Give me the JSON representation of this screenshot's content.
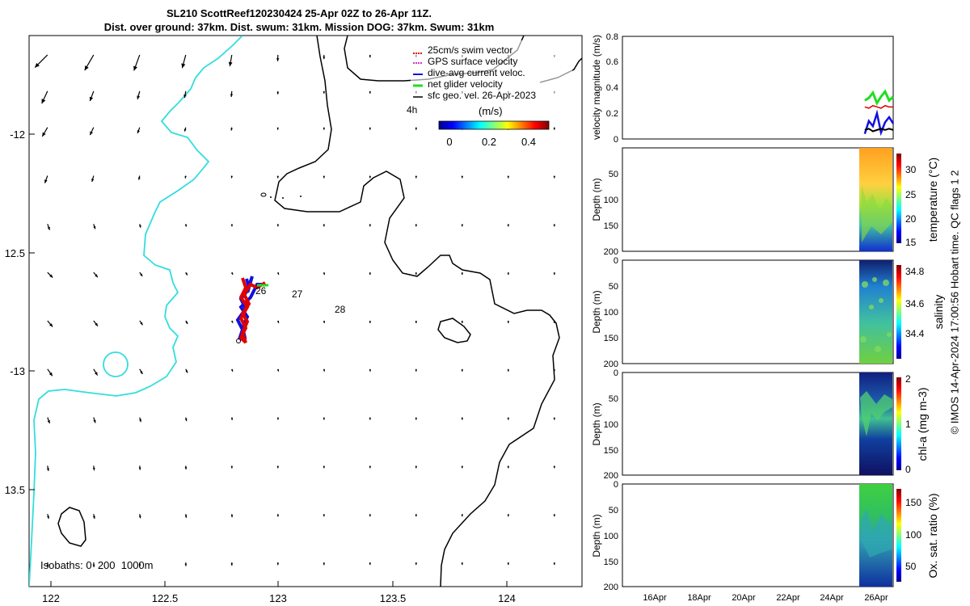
{
  "title": {
    "line1": "SL210 ScottReef120230424 25-Apr 02Z to 26-Apr 11Z.",
    "line2": "Dist. over ground: 37km. Dist. swum: 31km. Mission DOG: 37km. Swum: 31km"
  },
  "side_note": "© IMOS 14-Apr-2024 17:00:56 Hobart time. QC flags 1  2",
  "colors": {
    "coastline": "#33dddd",
    "isobath": "#000000",
    "swim_vector": "#e00000",
    "gps_velocity": "#cc33cc",
    "current_vel": "#1010e0",
    "net_velocity": "#22dd22",
    "geo_vel": "#000000"
  },
  "chart_data": [
    {
      "type": "scatter",
      "name": "map",
      "xlim": [
        121.92,
        124.32
      ],
      "ylim": [
        -13.9,
        -11.62
      ],
      "xticks": [
        122,
        122.5,
        123,
        123.5,
        124
      ],
      "xtick_labels": [
        "122",
        "122.5",
        "123",
        "123.5",
        "124"
      ],
      "yticks": [
        -12,
        -12.5,
        -13,
        -13.5
      ],
      "ytick_labels": [
        "-12",
        "12.5",
        "-13",
        "13.5"
      ],
      "legend": {
        "placement": "top-right",
        "entries": [
          "25cm/s swim vector",
          "GPS surface velocity",
          "dive-avg current veloc.",
          "net glider velocity",
          "sfc geo. vel. 26-Apr-2023"
        ]
      },
      "time_marker": "4h",
      "colorbar": {
        "label": "(m/s)",
        "ticks": [
          "0",
          "0.2",
          "0.4"
        ],
        "range": [
          0,
          0.5
        ]
      },
      "isobath_label": "Isobaths: 0  200  1000m",
      "day_labels": [
        {
          "text": "26",
          "lon": 122.93,
          "lat": -12.65
        },
        {
          "text": "27",
          "lon": 123.09,
          "lat": -12.67
        },
        {
          "text": "28",
          "lon": 123.27,
          "lat": -12.73
        }
      ],
      "geo_velocity_field": {
        "lon": [
          122.0,
          122.2,
          122.4,
          122.6,
          122.8,
          123.0,
          123.2,
          123.4,
          123.6,
          123.8,
          124.0,
          124.2
        ],
        "lat": [
          -11.7,
          -11.85,
          -12.0,
          -12.2,
          -12.4,
          -12.6,
          -12.8,
          -13.0,
          -13.2,
          -13.4,
          -13.6,
          -13.8
        ],
        "speed": [
          [
            0.34,
            0.34,
            0.32,
            0.26,
            0.22,
            0.12,
            0.08,
            0.05,
            0.03,
            0.02,
            0.02,
            0.02
          ],
          [
            0.26,
            0.2,
            0.16,
            0.13,
            0.11,
            0.06,
            0.04,
            0.03,
            0.02,
            0.02,
            0.02,
            0.02
          ],
          [
            0.2,
            0.16,
            0.12,
            0.08,
            0.06,
            0.04,
            0.03,
            0.02,
            0.02,
            0.02,
            0.02,
            0.02
          ],
          [
            0.15,
            0.12,
            0.08,
            0.05,
            0.03,
            0.02,
            0.02,
            0.02,
            0.02,
            0.02,
            0.02,
            0.02
          ],
          [
            0.12,
            0.1,
            0.07,
            0.05,
            0.03,
            0.02,
            0.02,
            0.02,
            0.02,
            0.02,
            0.02,
            0.02
          ],
          [
            0.14,
            0.12,
            0.09,
            0.06,
            0.04,
            0.02,
            0.02,
            0.02,
            0.02,
            0.02,
            0.02,
            0.02
          ],
          [
            0.15,
            0.13,
            0.1,
            0.07,
            0.04,
            0.02,
            0.02,
            0.02,
            0.02,
            0.02,
            0.02,
            0.02
          ],
          [
            0.16,
            0.14,
            0.11,
            0.08,
            0.05,
            0.03,
            0.02,
            0.02,
            0.02,
            0.02,
            0.02,
            0.02
          ],
          [
            0.12,
            0.11,
            0.09,
            0.07,
            0.05,
            0.03,
            0.02,
            0.02,
            0.02,
            0.02,
            0.02,
            0.02
          ],
          [
            0.1,
            0.09,
            0.08,
            0.07,
            0.05,
            0.04,
            0.03,
            0.02,
            0.02,
            0.02,
            0.02,
            0.02
          ],
          [
            0.09,
            0.09,
            0.08,
            0.07,
            0.06,
            0.05,
            0.04,
            0.03,
            0.03,
            0.03,
            0.02,
            0.02
          ],
          [
            0.09,
            0.09,
            0.08,
            0.07,
            0.06,
            0.05,
            0.05,
            0.04,
            0.03,
            0.03,
            0.03,
            0.03
          ]
        ],
        "direction_deg": [
          [
            225,
            210,
            200,
            195,
            190,
            182,
            180,
            180,
            180,
            180,
            180,
            180
          ],
          [
            205,
            200,
            195,
            190,
            185,
            182,
            180,
            180,
            180,
            180,
            180,
            180
          ],
          [
            210,
            205,
            200,
            195,
            190,
            185,
            180,
            180,
            180,
            180,
            180,
            180
          ],
          [
            200,
            195,
            192,
            190,
            186,
            182,
            180,
            180,
            180,
            180,
            180,
            180
          ],
          [
            160,
            162,
            165,
            170,
            175,
            178,
            180,
            180,
            180,
            180,
            180,
            180
          ],
          [
            135,
            140,
            145,
            150,
            155,
            160,
            170,
            180,
            180,
            180,
            180,
            180
          ],
          [
            140,
            142,
            145,
            150,
            155,
            160,
            170,
            180,
            180,
            180,
            180,
            180
          ],
          [
            145,
            148,
            150,
            155,
            160,
            165,
            170,
            175,
            180,
            180,
            180,
            180
          ],
          [
            160,
            162,
            165,
            168,
            172,
            175,
            178,
            180,
            180,
            180,
            180,
            180
          ],
          [
            170,
            172,
            174,
            176,
            178,
            180,
            180,
            180,
            180,
            180,
            180,
            180
          ],
          [
            165,
            168,
            170,
            172,
            175,
            178,
            180,
            180,
            180,
            180,
            180,
            180
          ],
          [
            175,
            176,
            178,
            178,
            180,
            180,
            180,
            180,
            180,
            180,
            180,
            180
          ]
        ]
      }
    },
    {
      "type": "line",
      "name": "velocity",
      "ylabel": "velocity magnitude (m/s)",
      "ylim": [
        0,
        0.8
      ],
      "yticks": [
        "0",
        "0.2",
        "0.4",
        "0.6",
        "0.8"
      ],
      "xlim": [
        0,
        1
      ],
      "series": [
        {
          "x": [
            0.895,
            0.91,
            0.925,
            0.94,
            0.955,
            0.97,
            0.985,
            1.0
          ],
          "y": [
            0.3,
            0.32,
            0.36,
            0.28,
            0.33,
            0.37,
            0.3,
            0.33
          ]
        },
        {
          "x": [
            0.895,
            0.91,
            0.925,
            0.94,
            0.955,
            0.97,
            0.985,
            1.0
          ],
          "y": [
            0.04,
            0.14,
            0.1,
            0.2,
            0.05,
            0.13,
            0.17,
            0.12
          ]
        },
        {
          "x": [
            0.895,
            0.91,
            0.925,
            0.94,
            0.955,
            0.97,
            0.985,
            1.0
          ],
          "y": [
            0.25,
            0.24,
            0.26,
            0.25,
            0.24,
            0.26,
            0.25,
            0.25
          ]
        },
        {
          "x": [
            0.895,
            0.91,
            0.925,
            0.94,
            0.955,
            0.97,
            0.985,
            1.0
          ],
          "y": [
            0.07,
            0.08,
            0.06,
            0.07,
            0.08,
            0.07,
            0.08,
            0.07
          ]
        }
      ]
    },
    {
      "type": "heatmap",
      "name": "temperature",
      "ylabel": "Depth (m)",
      "ylim": [
        200,
        0
      ],
      "yticks": [
        "0",
        "50",
        "100",
        "150",
        "200"
      ],
      "colorbar_label": "temperature (°C)",
      "colorbar_ticks": [
        "15",
        "20",
        "25",
        "30"
      ],
      "data_columns": [
        0.88,
        1.0
      ]
    },
    {
      "type": "heatmap",
      "name": "salinity",
      "ylabel": "Depth (m)",
      "ylim": [
        200,
        0
      ],
      "yticks": [
        "0",
        "50",
        "100",
        "150",
        "200"
      ],
      "colorbar_label": "salinity",
      "colorbar_ticks": [
        "34.4",
        "34.6",
        "34.8"
      ],
      "data_columns": [
        0.88,
        1.0
      ]
    },
    {
      "type": "heatmap",
      "name": "chla",
      "ylabel": "Depth (m)",
      "ylim": [
        200,
        0
      ],
      "yticks": [
        "0",
        "50",
        "100",
        "150",
        "200"
      ],
      "colorbar_label": "chl-a (mg m-3)",
      "colorbar_ticks": [
        "0",
        "1",
        "2"
      ],
      "data_columns": [
        0.88,
        1.0
      ]
    },
    {
      "type": "heatmap",
      "name": "oxygen",
      "ylabel": "Depth (m)",
      "ylim": [
        200,
        0
      ],
      "yticks": [
        "0",
        "50",
        "100",
        "150",
        "200"
      ],
      "colorbar_label": "Ox. sat. ratio (%)",
      "colorbar_ticks": [
        "50",
        "100",
        "150"
      ],
      "data_columns": [
        0.88,
        1.0
      ],
      "xtick_labels": [
        "16Apr",
        "18Apr",
        "20Apr",
        "22Apr",
        "24Apr",
        "26Apr"
      ]
    }
  ]
}
